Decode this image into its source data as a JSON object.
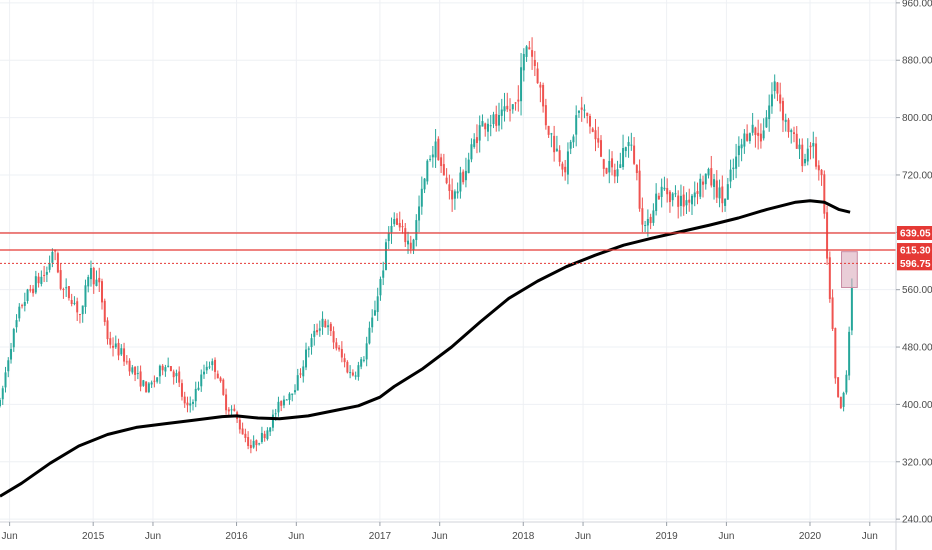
{
  "chart_data": {
    "type": "candlestick",
    "title": "",
    "xlabel": "",
    "ylabel": "",
    "ylim": [
      236,
      964
    ],
    "grid": true,
    "y_ticks": [
      {
        "value": 960,
        "label": "960.00"
      },
      {
        "value": 880,
        "label": "880.00"
      },
      {
        "value": 800,
        "label": "800.00"
      },
      {
        "value": 720,
        "label": "720.00"
      },
      {
        "value": 640,
        "label": "640.00"
      },
      {
        "value": 560,
        "label": "560.00"
      },
      {
        "value": 480,
        "label": "480.00"
      },
      {
        "value": 400,
        "label": "400.00"
      },
      {
        "value": 320,
        "label": "320.00"
      },
      {
        "value": 240,
        "label": "240.00"
      }
    ],
    "x_ticks": [
      {
        "t": 2014.417,
        "label": "Jun"
      },
      {
        "t": 2015.0,
        "label": "2015"
      },
      {
        "t": 2015.417,
        "label": "Jun"
      },
      {
        "t": 2016.0,
        "label": "2016"
      },
      {
        "t": 2016.417,
        "label": "Jun"
      },
      {
        "t": 2017.0,
        "label": "2017"
      },
      {
        "t": 2017.417,
        "label": "Jun"
      },
      {
        "t": 2018.0,
        "label": "2018"
      },
      {
        "t": 2018.417,
        "label": "Jun"
      },
      {
        "t": 2019.0,
        "label": "2019"
      },
      {
        "t": 2019.417,
        "label": "Jun"
      },
      {
        "t": 2020.0,
        "label": "2020"
      },
      {
        "t": 2020.417,
        "label": "Jun"
      }
    ],
    "xlim": [
      2014.35,
      2020.6
    ],
    "up_color": "#26a69a",
    "down_color": "#ef5350",
    "price_path": [
      [
        2014.35,
        400
      ],
      [
        2014.42,
        480
      ],
      [
        2014.5,
        540
      ],
      [
        2014.6,
        570
      ],
      [
        2014.68,
        585
      ],
      [
        2014.72,
        620
      ],
      [
        2014.78,
        560
      ],
      [
        2014.85,
        550
      ],
      [
        2014.92,
        520
      ],
      [
        2014.97,
        590
      ],
      [
        2015.05,
        560
      ],
      [
        2015.1,
        490
      ],
      [
        2015.2,
        470
      ],
      [
        2015.3,
        440
      ],
      [
        2015.38,
        420
      ],
      [
        2015.45,
        440
      ],
      [
        2015.5,
        460
      ],
      [
        2015.58,
        440
      ],
      [
        2015.65,
        390
      ],
      [
        2015.72,
        420
      ],
      [
        2015.8,
        460
      ],
      [
        2015.86,
        450
      ],
      [
        2015.92,
        400
      ],
      [
        2015.98,
        390
      ],
      [
        2016.02,
        370
      ],
      [
        2016.1,
        340
      ],
      [
        2016.2,
        360
      ],
      [
        2016.3,
        400
      ],
      [
        2016.42,
        430
      ],
      [
        2016.5,
        480
      ],
      [
        2016.6,
        520
      ],
      [
        2016.65,
        500
      ],
      [
        2016.72,
        470
      ],
      [
        2016.8,
        440
      ],
      [
        2016.88,
        460
      ],
      [
        2016.95,
        520
      ],
      [
        2017.02,
        590
      ],
      [
        2017.08,
        660
      ],
      [
        2017.15,
        640
      ],
      [
        2017.22,
        620
      ],
      [
        2017.28,
        680
      ],
      [
        2017.35,
        750
      ],
      [
        2017.4,
        760
      ],
      [
        2017.45,
        710
      ],
      [
        2017.52,
        690
      ],
      [
        2017.6,
        730
      ],
      [
        2017.68,
        780
      ],
      [
        2017.75,
        800
      ],
      [
        2017.82,
        790
      ],
      [
        2017.9,
        810
      ],
      [
        2017.95,
        820
      ],
      [
        2018.03,
        910
      ],
      [
        2018.1,
        860
      ],
      [
        2018.15,
        800
      ],
      [
        2018.22,
        760
      ],
      [
        2018.3,
        730
      ],
      [
        2018.38,
        810
      ],
      [
        2018.45,
        800
      ],
      [
        2018.5,
        770
      ],
      [
        2018.58,
        730
      ],
      [
        2018.65,
        720
      ],
      [
        2018.72,
        770
      ],
      [
        2018.78,
        740
      ],
      [
        2018.82,
        670
      ],
      [
        2018.86,
        640
      ],
      [
        2018.92,
        690
      ],
      [
        2018.98,
        700
      ],
      [
        2019.05,
        690
      ],
      [
        2019.12,
        680
      ],
      [
        2019.2,
        700
      ],
      [
        2019.28,
        720
      ],
      [
        2019.35,
        700
      ],
      [
        2019.4,
        680
      ],
      [
        2019.45,
        720
      ],
      [
        2019.5,
        750
      ],
      [
        2019.58,
        790
      ],
      [
        2019.65,
        770
      ],
      [
        2019.72,
        820
      ],
      [
        2019.76,
        850
      ],
      [
        2019.82,
        800
      ],
      [
        2019.9,
        760
      ],
      [
        2019.96,
        740
      ],
      [
        2020.0,
        770
      ],
      [
        2020.04,
        740
      ],
      [
        2020.09,
        700
      ],
      [
        2020.12,
        590
      ],
      [
        2020.15,
        530
      ],
      [
        2020.18,
        420
      ],
      [
        2020.22,
        390
      ],
      [
        2020.26,
        460
      ],
      [
        2020.29,
        560
      ],
      [
        2020.3,
        600
      ]
    ],
    "moving_average": [
      [
        2014.35,
        272
      ],
      [
        2014.5,
        290
      ],
      [
        2014.7,
        318
      ],
      [
        2014.9,
        342
      ],
      [
        2015.1,
        358
      ],
      [
        2015.3,
        368
      ],
      [
        2015.5,
        373
      ],
      [
        2015.7,
        378
      ],
      [
        2015.9,
        383
      ],
      [
        2016.0,
        384
      ],
      [
        2016.15,
        381
      ],
      [
        2016.3,
        380
      ],
      [
        2016.5,
        384
      ],
      [
        2016.7,
        392
      ],
      [
        2016.85,
        398
      ],
      [
        2017.0,
        410
      ],
      [
        2017.1,
        425
      ],
      [
        2017.3,
        450
      ],
      [
        2017.5,
        480
      ],
      [
        2017.7,
        515
      ],
      [
        2017.9,
        548
      ],
      [
        2018.1,
        572
      ],
      [
        2018.3,
        592
      ],
      [
        2018.5,
        608
      ],
      [
        2018.7,
        622
      ],
      [
        2018.9,
        632
      ],
      [
        2019.1,
        641
      ],
      [
        2019.3,
        650
      ],
      [
        2019.5,
        660
      ],
      [
        2019.7,
        672
      ],
      [
        2019.9,
        682
      ],
      [
        2020.0,
        684
      ],
      [
        2020.1,
        682
      ],
      [
        2020.2,
        672
      ],
      [
        2020.28,
        668
      ]
    ],
    "horizontal_levels": [
      {
        "value": 639.05,
        "label": "639.05",
        "style": "solid",
        "color": "#e53935"
      },
      {
        "value": 615.3,
        "label": "615.30",
        "style": "solid",
        "color": "#e53935"
      },
      {
        "value": 596.75,
        "label": "596.75",
        "style": "dotted",
        "color": "#e53935"
      }
    ],
    "highlight_box": {
      "t0": 2020.22,
      "t1": 2020.33,
      "y0": 563,
      "y1": 613,
      "color": "#d7a4b6"
    }
  }
}
